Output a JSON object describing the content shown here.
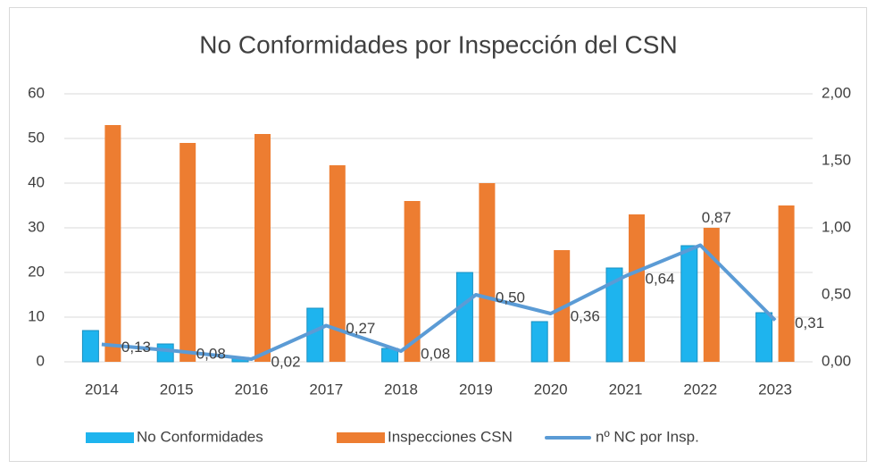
{
  "chart_data": {
    "type": "bar",
    "title": "No Conformidades por Inspección del CSN",
    "categories": [
      "2014",
      "2015",
      "2016",
      "2017",
      "2018",
      "2019",
      "2020",
      "2021",
      "2022",
      "2023"
    ],
    "series": [
      {
        "name": "No Conformidades",
        "type": "bar",
        "color": "#1eb4ee",
        "values": [
          7,
          4,
          1,
          12,
          3,
          20,
          9,
          21,
          26,
          11
        ]
      },
      {
        "name": "Inspecciones CSN",
        "type": "bar",
        "color": "#ed7d31",
        "values": [
          53,
          49,
          51,
          44,
          36,
          40,
          25,
          33,
          30,
          35
        ]
      },
      {
        "name": "nº NC por Insp.",
        "type": "line",
        "axis": "y2",
        "color": "#5b9bd5",
        "values": [
          0.13,
          0.08,
          0.02,
          0.27,
          0.08,
          0.5,
          0.36,
          0.64,
          0.87,
          0.31
        ],
        "value_labels": [
          "0,13",
          "0,08",
          "0,02",
          "0,27",
          "0,08",
          "0,50",
          "0,36",
          "0,64",
          "0,87",
          "0,31"
        ]
      }
    ],
    "ylim": [
      0,
      60
    ],
    "yticks": [
      0,
      10,
      20,
      30,
      40,
      50,
      60
    ],
    "y2lim": [
      0,
      2
    ],
    "y2ticks": [
      {
        "value": 0,
        "label": "0,00"
      },
      {
        "value": 0.5,
        "label": "0,50"
      },
      {
        "value": 1,
        "label": "1,00"
      },
      {
        "value": 1.5,
        "label": "1,50"
      },
      {
        "value": 2,
        "label": "2,00"
      }
    ],
    "grid": true,
    "legend": "bottom"
  }
}
